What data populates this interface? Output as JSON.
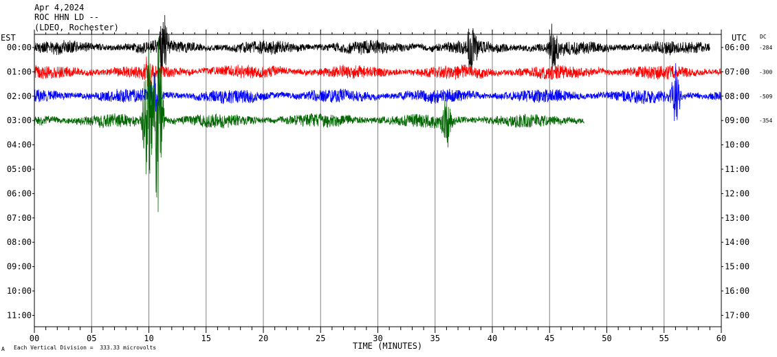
{
  "header": {
    "date": "Apr 4,2024",
    "station": "ROC HHN LD --",
    "network": "(LDEO, Rochester)"
  },
  "footer": {
    "scale_note": "Each Vertical Division =  333.33 microvolts",
    "corner_mark": "A"
  },
  "chart_data": {
    "type": "line",
    "title": "ROC HHN LD --",
    "xlabel": "TIME (MINUTES)",
    "left_axis_label": "EST",
    "right_axis_label": "UTC",
    "dc_label": "DC",
    "xlim": [
      0,
      60
    ],
    "x_ticks": [
      "00",
      "05",
      "10",
      "15",
      "20",
      "25",
      "30",
      "35",
      "40",
      "45",
      "50",
      "55",
      "60"
    ],
    "grid": "vertical every 5 minutes",
    "rows_est": [
      "00:00",
      "01:00",
      "02:00",
      "03:00",
      "04:00",
      "05:00",
      "06:00",
      "07:00",
      "08:00",
      "09:00",
      "10:00",
      "11:00"
    ],
    "rows_utc": [
      "06:00",
      "07:00",
      "08:00",
      "09:00",
      "10:00",
      "11:00",
      "12:00",
      "13:00",
      "14:00",
      "15:00",
      "16:00",
      "17:00"
    ],
    "series": [
      {
        "row": 0,
        "color": "#000000",
        "end_minute": 59,
        "dc": "-284",
        "events": [
          {
            "at": 11.3,
            "amp": 1.6
          },
          {
            "at": 38.2,
            "amp": 1.2
          },
          {
            "at": 45.3,
            "amp": 1.1
          }
        ]
      },
      {
        "row": 1,
        "color": "#ff0000",
        "end_minute": 60,
        "dc": "-300",
        "events": [
          {
            "at": 10.0,
            "amp": 0.9
          }
        ]
      },
      {
        "row": 2,
        "color": "#0000ff",
        "end_minute": 60,
        "dc": "-509",
        "events": [
          {
            "at": 10.5,
            "amp": 1.0
          },
          {
            "at": 56.0,
            "amp": 1.4
          }
        ]
      },
      {
        "row": 3,
        "color": "#006600",
        "end_minute": 48,
        "dc": "-354",
        "events": [
          {
            "at": 9.9,
            "amp": 3.5
          },
          {
            "at": 10.8,
            "amp": 4.3
          },
          {
            "at": 36.0,
            "amp": 1.1
          }
        ]
      }
    ]
  }
}
